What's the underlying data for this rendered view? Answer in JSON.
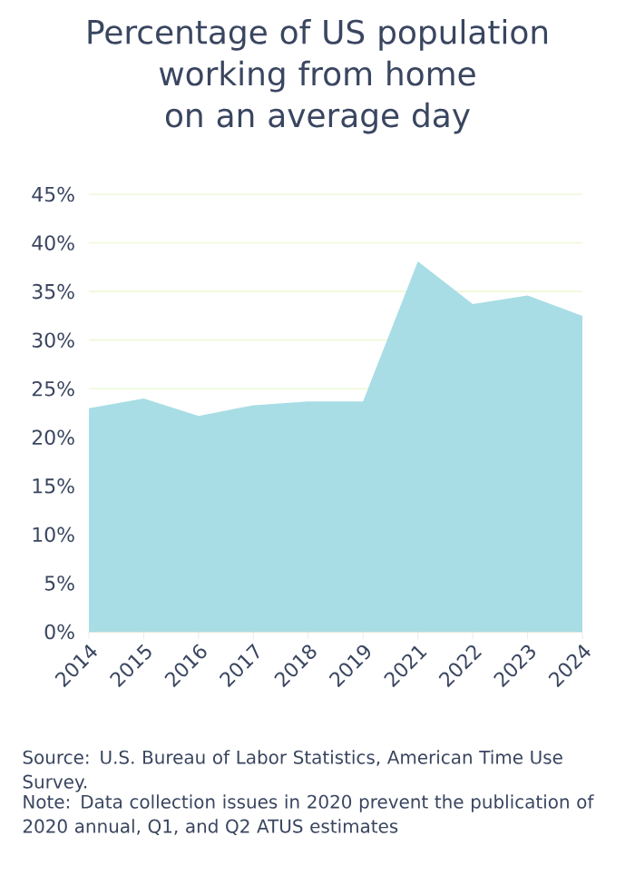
{
  "chart_data": {
    "type": "area",
    "title": "Percentage of US population working from home on an average day",
    "categories": [
      "2014",
      "2015",
      "2016",
      "2017",
      "2018",
      "2019",
      "2021",
      "2022",
      "2023",
      "2024"
    ],
    "values": [
      23.0,
      24.0,
      22.2,
      23.3,
      23.7,
      23.7,
      38.1,
      33.7,
      34.6,
      32.5
    ],
    "color": "#a8dde5",
    "ylim": [
      0,
      45
    ],
    "yticks": [
      {
        "value": 0,
        "label": "0%"
      },
      {
        "value": 5,
        "label": "5%"
      },
      {
        "value": 10,
        "label": "10%"
      },
      {
        "value": 15,
        "label": "15%"
      },
      {
        "value": 20,
        "label": "20%"
      },
      {
        "value": 25,
        "label": "25%"
      },
      {
        "value": 30,
        "label": "30%"
      },
      {
        "value": 35,
        "label": "35%"
      },
      {
        "value": 40,
        "label": "40%"
      },
      {
        "value": 45,
        "label": "45%"
      }
    ],
    "grid": "y",
    "annotations": [
      "Source: U.S. Bureau of Labor Statistics, American Time Use Survey.",
      "Note: Data collection issues in 2020 prevent the publication of 2020 annual, Q1, and Q2 ATUS estimates"
    ]
  }
}
